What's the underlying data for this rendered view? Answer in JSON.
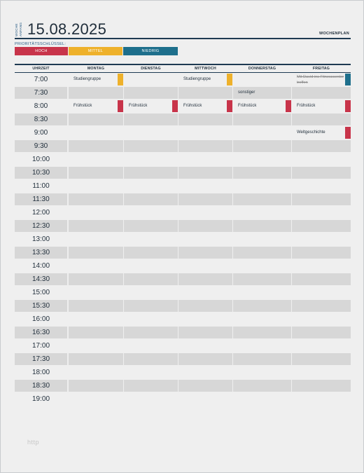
{
  "header": {
    "week_label_1": "WOCHE",
    "week_label_2": "ANFANG",
    "date": "15.08.2025",
    "plan_title": "WOCHENPLAN"
  },
  "priority_key": {
    "label": "PRIORITÄTSSCHLÜSSEL:",
    "high": "HOCH",
    "medium": "MITTEL",
    "low": "NIEDRIG"
  },
  "colors": {
    "high": "#c8344a",
    "medium": "#eeb12b",
    "low": "#1e6f8c"
  },
  "columns": [
    "UHRZEIT",
    "MONTAG",
    "DIENSTAG",
    "MITTWOCH",
    "DONNERSTAG",
    "FREITAG"
  ],
  "times": [
    "7:00",
    "7:30",
    "8:00",
    "8:30",
    "9:00",
    "9:30",
    "10:00",
    "10:30",
    "11:00",
    "11:30",
    "12:00",
    "12:30",
    "13:00",
    "13:30",
    "14:00",
    "14:30",
    "15:00",
    "15:30",
    "16:00",
    "16:30",
    "17:00",
    "17:30",
    "18:00",
    "18:30",
    "19:00"
  ],
  "events": [
    {
      "row": 0,
      "day": 1,
      "text": "Studiengruppe",
      "priority": "medium"
    },
    {
      "row": 0,
      "day": 3,
      "text": "Studiengruppe",
      "priority": "medium"
    },
    {
      "row": 0,
      "day": 5,
      "text": "Mit David ins Fitnesscenter treffen",
      "priority": "low",
      "strike": true
    },
    {
      "row": 1,
      "day": 4,
      "text": "sonstiger",
      "priority": ""
    },
    {
      "row": 2,
      "day": 1,
      "text": "Frühstück",
      "priority": "high"
    },
    {
      "row": 2,
      "day": 2,
      "text": "Frühstück",
      "priority": "high"
    },
    {
      "row": 2,
      "day": 3,
      "text": "Frühstück",
      "priority": "high"
    },
    {
      "row": 2,
      "day": 4,
      "text": "Frühstück",
      "priority": "high"
    },
    {
      "row": 2,
      "day": 5,
      "text": "Frühstück",
      "priority": "high"
    },
    {
      "row": 4,
      "day": 5,
      "text": "Weltgeschichte",
      "priority": "high"
    }
  ],
  "footer": "http"
}
